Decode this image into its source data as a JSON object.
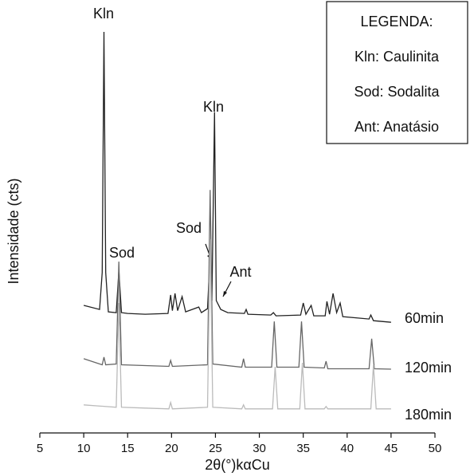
{
  "chart_data": {
    "type": "line",
    "x_label": "2θ(°)kαCu",
    "y_label": "Intensidade (cts)",
    "xlim": [
      5,
      50
    ],
    "xticks": [
      5,
      10,
      15,
      20,
      25,
      30,
      35,
      40,
      45,
      50
    ],
    "ylim": [
      0,
      100
    ],
    "series": [
      {
        "name": "60min",
        "color": "#222222",
        "x": [
          10,
          11.8,
          12.1,
          12.3,
          12.5,
          12.8,
          13.7,
          14,
          14.3,
          15,
          17,
          19.6,
          19.9,
          20.1,
          20.4,
          20.7,
          21.2,
          21.6,
          23.1,
          23.4,
          24.1,
          24.4,
          24.6,
          24.9,
          25.1,
          25.6,
          26.4,
          28.3,
          28.5,
          28.7,
          31.3,
          31.6,
          31.9,
          34.7,
          35,
          35.3,
          35.9,
          36.2,
          37.5,
          37.7,
          38,
          38.4,
          38.8,
          39.2,
          39.5,
          42.5,
          42.7,
          43,
          45
        ],
        "values": [
          31.8,
          30.8,
          40,
          100,
          40,
          30.2,
          30,
          40.4,
          30,
          29.8,
          29.6,
          29.8,
          34.4,
          30.5,
          34.8,
          30.5,
          34,
          30.2,
          31.4,
          30,
          31,
          44.3,
          33,
          80,
          33,
          30.8,
          30,
          29.8,
          30.8,
          29.6,
          29.4,
          30,
          29.2,
          29.4,
          32.4,
          29.6,
          31.8,
          29.2,
          29.2,
          32.8,
          29.6,
          34.8,
          30,
          32.4,
          29,
          28.4,
          29.4,
          28,
          27.6
        ]
      },
      {
        "name": "120min",
        "color": "#666666",
        "x": [
          10,
          12.1,
          12.3,
          12.5,
          13.7,
          14,
          14.3,
          17,
          19.7,
          19.9,
          20.1,
          24.1,
          24.4,
          24.7,
          28,
          28.2,
          28.4,
          31.4,
          31.7,
          32,
          34.5,
          34.8,
          35.1,
          37.4,
          37.6,
          37.8,
          42.5,
          42.8,
          43.1,
          45
        ],
        "values": [
          18.5,
          17,
          18.9,
          17,
          17.2,
          42.7,
          17,
          16.8,
          16.6,
          18.1,
          16.6,
          17,
          60.6,
          17.2,
          16.4,
          18.5,
          16.4,
          16.4,
          27.8,
          16.4,
          16.4,
          27.8,
          16.4,
          16.2,
          17.9,
          16,
          16,
          23.5,
          16,
          15.9
        ]
      },
      {
        "name": "180min",
        "color": "#bbbbbb",
        "x": [
          10,
          13.7,
          14,
          14.3,
          17,
          19.7,
          19.9,
          20.1,
          24.1,
          24.4,
          24.7,
          28,
          28.2,
          28.4,
          31.5,
          31.8,
          32.1,
          34.6,
          34.9,
          35.2,
          37.4,
          37.6,
          37.8,
          42.7,
          43,
          43.3,
          45
        ],
        "values": [
          7,
          6.4,
          32.4,
          6.4,
          6.2,
          6,
          7.6,
          6,
          6.4,
          48.3,
          6.4,
          6,
          7,
          6,
          6,
          16.5,
          6,
          6,
          17.5,
          6,
          6,
          6.6,
          6,
          6,
          16.9,
          6,
          6
        ]
      }
    ],
    "annotations": [
      "Kln",
      "Sod",
      "Sod",
      "Kln",
      "Ant"
    ],
    "legend_box": {
      "title": "LEGENDA:",
      "entries": [
        "Kln: Caulinita",
        "Sod: Sodalita",
        "Ant: Anatásio"
      ]
    }
  }
}
